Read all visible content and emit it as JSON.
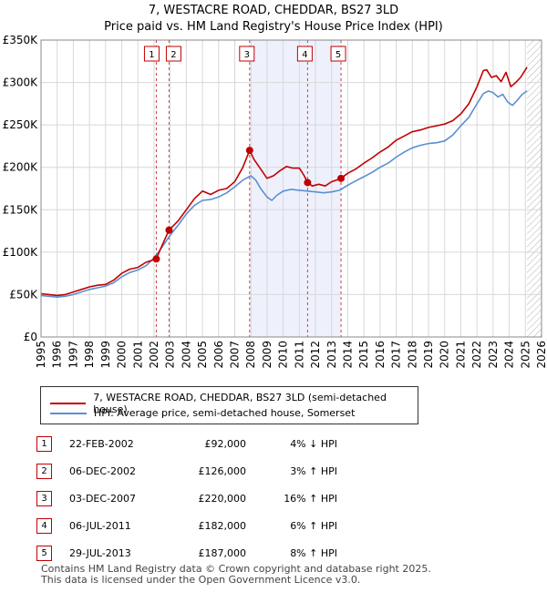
{
  "title": "7, WESTACRE ROAD, CHEDDAR, BS27 3LD",
  "subtitle": "Price paid vs. HM Land Registry's House Price Index (HPI)",
  "colors": {
    "property": "#c00000",
    "hpi": "#5b8fd0",
    "shade": "#eef1fc",
    "grid": "#d8d8d8",
    "vline": "#d04040"
  },
  "legend": {
    "property_label": "7, WESTACRE ROAD, CHEDDAR, BS27 3LD (semi-detached house)",
    "hpi_label": "HPI: Average price, semi-detached house, Somerset"
  },
  "transactions": [
    {
      "num": "1",
      "date": "22-FEB-2002",
      "price": "£92,000",
      "hpi": "4% ↓ HPI"
    },
    {
      "num": "2",
      "date": "06-DEC-2002",
      "price": "£126,000",
      "hpi": "3% ↑ HPI"
    },
    {
      "num": "3",
      "date": "03-DEC-2007",
      "price": "£220,000",
      "hpi": "16% ↑ HPI"
    },
    {
      "num": "4",
      "date": "06-JUL-2011",
      "price": "£182,000",
      "hpi": "6% ↑ HPI"
    },
    {
      "num": "5",
      "date": "29-JUL-2013",
      "price": "£187,000",
      "hpi": "8% ↑ HPI"
    }
  ],
  "footer": {
    "line1": "Contains HM Land Registry data © Crown copyright and database right 2025.",
    "line2": "This data is licensed under the Open Government Licence v3.0."
  },
  "chart_data": {
    "type": "line",
    "title": "7, WESTACRE ROAD, CHEDDAR, BS27 3LD",
    "subtitle": "Price paid vs. HM Land Registry's House Price Index (HPI)",
    "xlabel": "",
    "ylabel": "",
    "xlim": [
      1995,
      2026
    ],
    "ylim": [
      0,
      350000
    ],
    "grid": true,
    "legend_position": "below",
    "x_ticks": [
      "1995",
      "1996",
      "1997",
      "1998",
      "1999",
      "2000",
      "2001",
      "2002",
      "2003",
      "2004",
      "2005",
      "2006",
      "2007",
      "2008",
      "2009",
      "2010",
      "2011",
      "2012",
      "2013",
      "2014",
      "2015",
      "2016",
      "2017",
      "2018",
      "2019",
      "2020",
      "2021",
      "2022",
      "2023",
      "2024",
      "2025",
      "2026"
    ],
    "y_ticks": [
      {
        "value": 0,
        "label": "£0"
      },
      {
        "value": 50000,
        "label": "£50K"
      },
      {
        "value": 100000,
        "label": "£100K"
      },
      {
        "value": 150000,
        "label": "£150K"
      },
      {
        "value": 200000,
        "label": "£200K"
      },
      {
        "value": 250000,
        "label": "£250K"
      },
      {
        "value": 300000,
        "label": "£300K"
      },
      {
        "value": 350000,
        "label": "£350K"
      }
    ],
    "shaded_range": [
      2007.92,
      2013.58
    ],
    "future_hatch_from": 2025.1,
    "sales": [
      {
        "label": "1",
        "x": 2002.14,
        "y": 92000
      },
      {
        "label": "2",
        "x": 2002.93,
        "y": 126000
      },
      {
        "label": "3",
        "x": 2007.92,
        "y": 220000
      },
      {
        "label": "4",
        "x": 2011.51,
        "y": 182000
      },
      {
        "label": "5",
        "x": 2013.58,
        "y": 187000
      }
    ],
    "series": [
      {
        "name": "7, WESTACRE ROAD, CHEDDAR, BS27 3LD (semi-detached house)",
        "x": [
          1995,
          1995.5,
          1996,
          1996.5,
          1997,
          1997.5,
          1998,
          1998.5,
          1999,
          1999.5,
          2000,
          2000.5,
          2001,
          2001.5,
          2002.14,
          2002.5,
          2002.93,
          2003.5,
          2004,
          2004.5,
          2005,
          2005.5,
          2006,
          2006.5,
          2007,
          2007.5,
          2007.92,
          2008.2,
          2008.6,
          2009,
          2009.4,
          2009.8,
          2010.2,
          2010.6,
          2011,
          2011.3,
          2011.51,
          2011.8,
          2012.2,
          2012.6,
          2013,
          2013.3,
          2013.58,
          2014,
          2014.5,
          2015,
          2015.5,
          2016,
          2016.5,
          2017,
          2017.5,
          2018,
          2018.5,
          2019,
          2019.5,
          2020,
          2020.5,
          2021,
          2021.5,
          2022,
          2022.4,
          2022.6,
          2022.9,
          2023.2,
          2023.5,
          2023.8,
          2024.1,
          2024.4,
          2024.7,
          2025.1
        ],
        "y": [
          51000,
          50000,
          49000,
          50000,
          53000,
          56000,
          59000,
          61000,
          62000,
          67000,
          75000,
          80000,
          82000,
          88000,
          92000,
          108000,
          126000,
          137000,
          150000,
          163000,
          172000,
          168000,
          173000,
          175000,
          183000,
          200000,
          220000,
          209000,
          198000,
          187000,
          190000,
          196000,
          201000,
          199000,
          199000,
          190000,
          182000,
          178000,
          180000,
          178000,
          183000,
          185000,
          187000,
          193000,
          198000,
          205000,
          211000,
          218000,
          224000,
          232000,
          237000,
          242000,
          244000,
          247000,
          249000,
          251000,
          255000,
          263000,
          275000,
          295000,
          314000,
          315000,
          306000,
          308000,
          301000,
          312000,
          295000,
          300000,
          306000,
          318000
        ]
      },
      {
        "name": "HPI: Average price, semi-detached house, Somerset",
        "x": [
          1995,
          1995.5,
          1996,
          1996.5,
          1997,
          1997.5,
          1998,
          1998.5,
          1999,
          1999.5,
          2000,
          2000.5,
          2001,
          2001.5,
          2002,
          2002.5,
          2003,
          2003.5,
          2004,
          2004.5,
          2005,
          2005.5,
          2006,
          2006.5,
          2007,
          2007.5,
          2008,
          2008.3,
          2008.6,
          2009,
          2009.3,
          2009.6,
          2010,
          2010.5,
          2011,
          2011.5,
          2012,
          2012.5,
          2013,
          2013.5,
          2014,
          2014.5,
          2015,
          2015.5,
          2016,
          2016.5,
          2017,
          2017.5,
          2018,
          2018.5,
          2019,
          2019.5,
          2020,
          2020.5,
          2021,
          2021.5,
          2022,
          2022.4,
          2022.7,
          2023,
          2023.3,
          2023.6,
          2023.9,
          2024.2,
          2024.5,
          2024.8,
          2025.1
        ],
        "y": [
          49000,
          48000,
          47000,
          48000,
          50000,
          53000,
          56000,
          58000,
          60000,
          64000,
          71000,
          76000,
          79000,
          84000,
          93000,
          106000,
          120000,
          132000,
          145000,
          155000,
          161000,
          162000,
          165000,
          170000,
          177000,
          185000,
          190000,
          185000,
          175000,
          165000,
          161000,
          167000,
          172000,
          174000,
          173000,
          172000,
          171000,
          170000,
          171000,
          173000,
          179000,
          184000,
          189000,
          194000,
          200000,
          205000,
          212000,
          218000,
          223000,
          226000,
          228000,
          229000,
          231000,
          238000,
          249000,
          259000,
          275000,
          287000,
          290000,
          288000,
          283000,
          286000,
          277000,
          273000,
          279000,
          286000,
          290000
        ]
      }
    ]
  }
}
